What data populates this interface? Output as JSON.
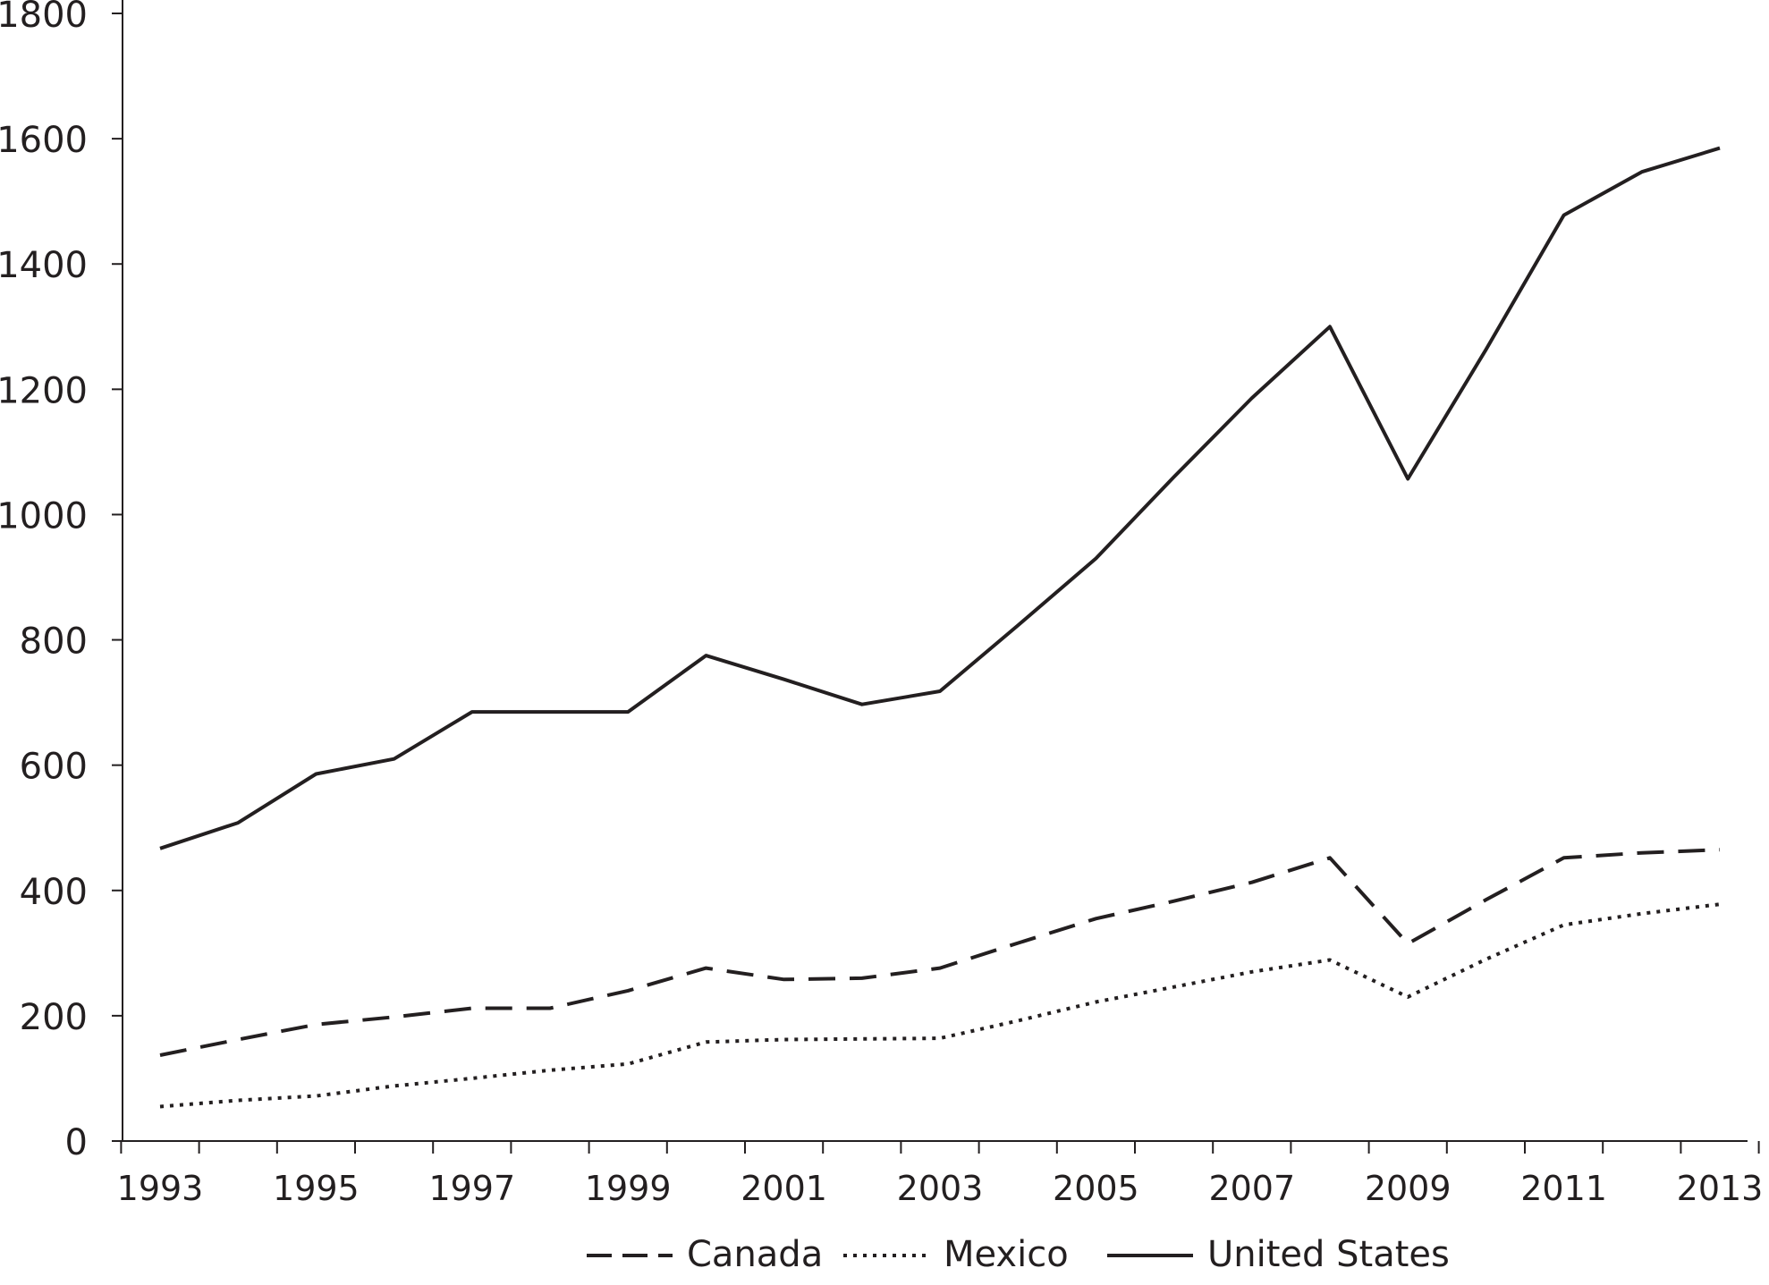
{
  "chart_data": {
    "type": "line",
    "title": "",
    "xlabel": "",
    "ylabel": "",
    "x": [
      1993,
      1994,
      1995,
      1996,
      1997,
      1998,
      1999,
      2000,
      2001,
      2002,
      2003,
      2004,
      2005,
      2006,
      2007,
      2008,
      2009,
      2010,
      2011,
      2012,
      2013
    ],
    "xticks": [
      "1993",
      "1995",
      "1997",
      "1999",
      "2001",
      "2003",
      "2005",
      "2007",
      "2009",
      "2011",
      "2013"
    ],
    "yticks": [
      "0",
      "200",
      "400",
      "600",
      "800",
      "1000",
      "1200",
      "1400",
      "1600",
      "1800"
    ],
    "ylim": [
      0,
      1800
    ],
    "xlim": [
      1992.5,
      2013.5
    ],
    "grid": false,
    "legend_position": "bottom-center",
    "series": [
      {
        "name": "Canada",
        "style": "dashed",
        "values": [
          137,
          162,
          186,
          198,
          212,
          212,
          240,
          276,
          258,
          260,
          276,
          316,
          355,
          383,
          413,
          452,
          315,
          385,
          452,
          460,
          465
        ]
      },
      {
        "name": "Mexico",
        "style": "dotted",
        "values": [
          55,
          65,
          72,
          88,
          100,
          113,
          123,
          158,
          162,
          163,
          164,
          192,
          222,
          246,
          270,
          289,
          230,
          290,
          345,
          363,
          378
        ]
      },
      {
        "name": "United States",
        "style": "solid",
        "values": [
          467,
          508,
          586,
          610,
          685,
          685,
          685,
          775,
          737,
          697,
          718,
          823,
          930,
          1060,
          1186,
          1300,
          1057,
          1263,
          1478,
          1547,
          1585
        ]
      }
    ],
    "colors": {
      "line": "#231f20",
      "axis": "#231f20",
      "background": "#ffffff"
    }
  }
}
